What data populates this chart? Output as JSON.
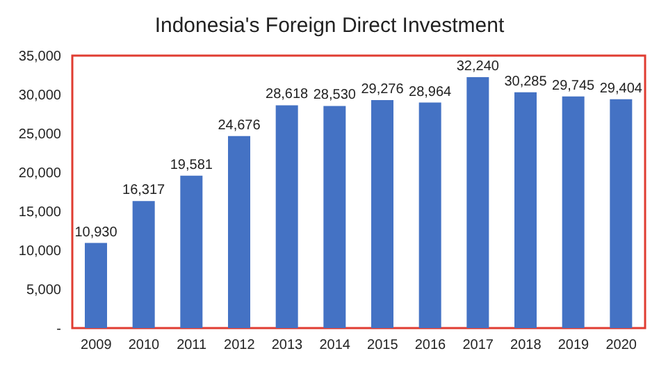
{
  "chart_data": {
    "type": "bar",
    "title": "Indonesia's Foreign Direct Investment",
    "categories": [
      "2009",
      "2010",
      "2011",
      "2012",
      "2013",
      "2014",
      "2015",
      "2016",
      "2017",
      "2018",
      "2019",
      "2020"
    ],
    "values": [
      10930,
      16317,
      19581,
      24676,
      28618,
      28530,
      29276,
      28964,
      32240,
      30285,
      29745,
      29404
    ],
    "color": "#4472c4",
    "data_labels": true,
    "value_labels": [
      "10,930",
      "16,317",
      "19,581",
      "24,676",
      "28,618",
      "28,530",
      "29,276",
      "28,964",
      "32,240",
      "30,285",
      "29,745",
      "29,404"
    ],
    "ylim": [
      0,
      35000
    ],
    "yticks": [
      {
        "value": 0,
        "label": "-"
      },
      {
        "value": 5000,
        "label": "5,000"
      },
      {
        "value": 10000,
        "label": "10,000"
      },
      {
        "value": 15000,
        "label": "15,000"
      },
      {
        "value": 20000,
        "label": "20,000"
      },
      {
        "value": 25000,
        "label": "25,000"
      },
      {
        "value": 30000,
        "label": "30,000"
      },
      {
        "value": 35000,
        "label": "35,000"
      }
    ],
    "grid": false
  }
}
